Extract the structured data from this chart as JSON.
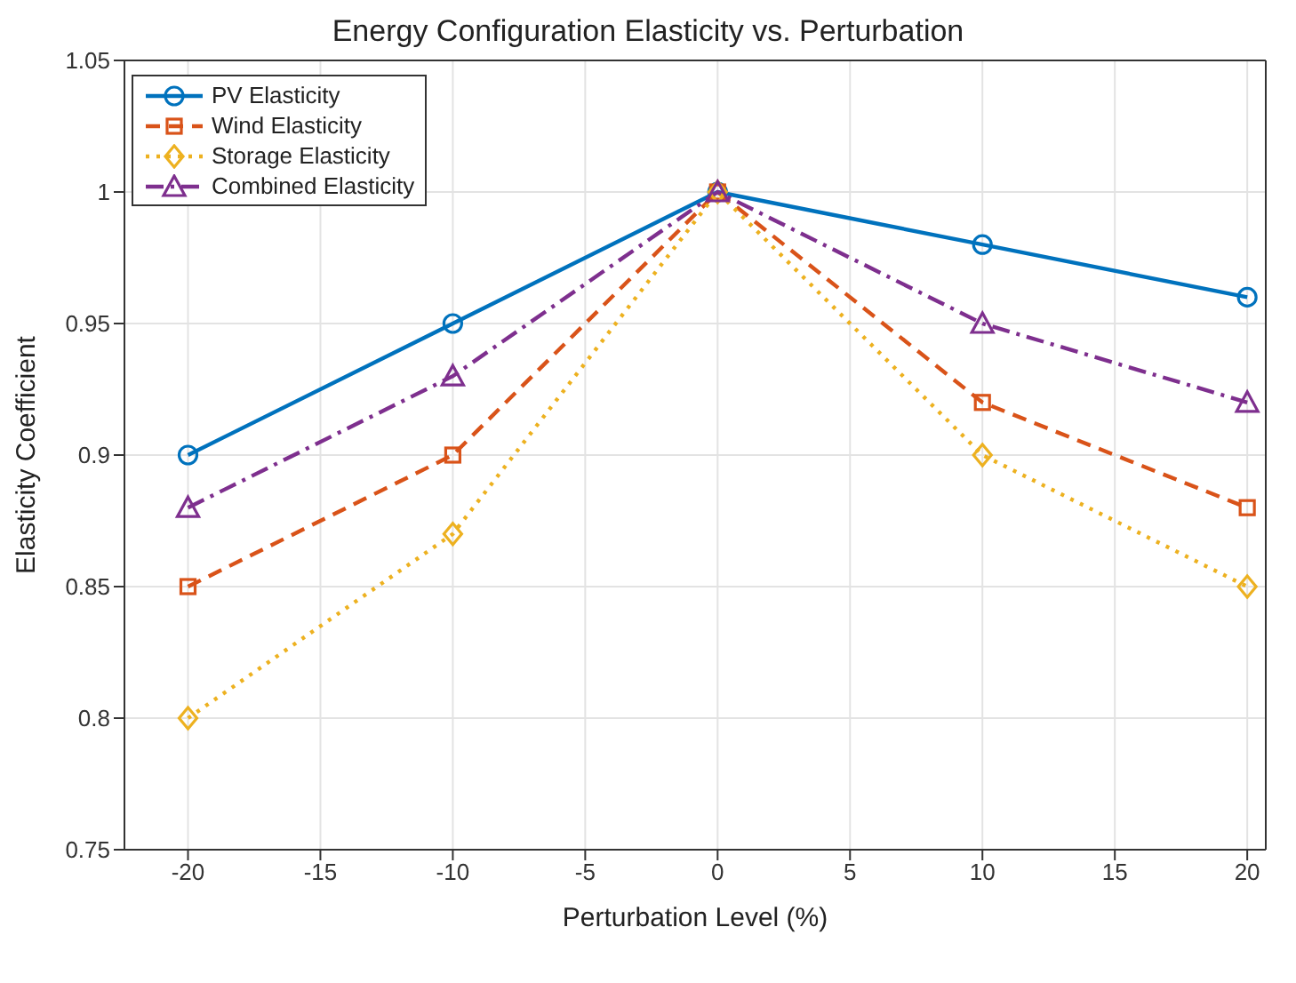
{
  "chart_data": {
    "type": "line",
    "title": "Energy Configuration Elasticity vs. Perturbation",
    "xlabel": "Perturbation Level (%)",
    "ylabel": "Elasticity Coefficient",
    "x": [
      -20,
      -10,
      0,
      10,
      20
    ],
    "series": [
      {
        "name": "PV Elasticity",
        "color": "#0072bd",
        "values": [
          0.9,
          0.95,
          1,
          0.98,
          0.96
        ],
        "marker": "circle",
        "line_style": "solid"
      },
      {
        "name": "Wind Elasticity",
        "color": "#d95319",
        "values": [
          0.85,
          0.9,
          1,
          0.92,
          0.88
        ],
        "marker": "square",
        "line_style": "dashed"
      },
      {
        "name": "Storage Elasticity",
        "color": "#edb120",
        "values": [
          0.8,
          0.87,
          1,
          0.9,
          0.85
        ],
        "marker": "diamond",
        "line_style": "dotted"
      },
      {
        "name": "Combined Elasticity",
        "color": "#7e2f8e",
        "values": [
          0.88,
          0.93,
          1,
          0.95,
          0.92
        ],
        "marker": "triangle",
        "line_style": "dashdot"
      }
    ],
    "xlim": [
      -22.4,
      20.7
    ],
    "xticks": [
      -20,
      -15,
      -10,
      -5,
      0,
      5,
      10,
      15,
      20
    ],
    "ylim": [
      0.75,
      1.05
    ],
    "yticks": [
      0.75,
      0.8,
      0.85,
      0.9,
      0.95,
      1,
      1.05
    ],
    "grid": true,
    "legend": "top left"
  }
}
